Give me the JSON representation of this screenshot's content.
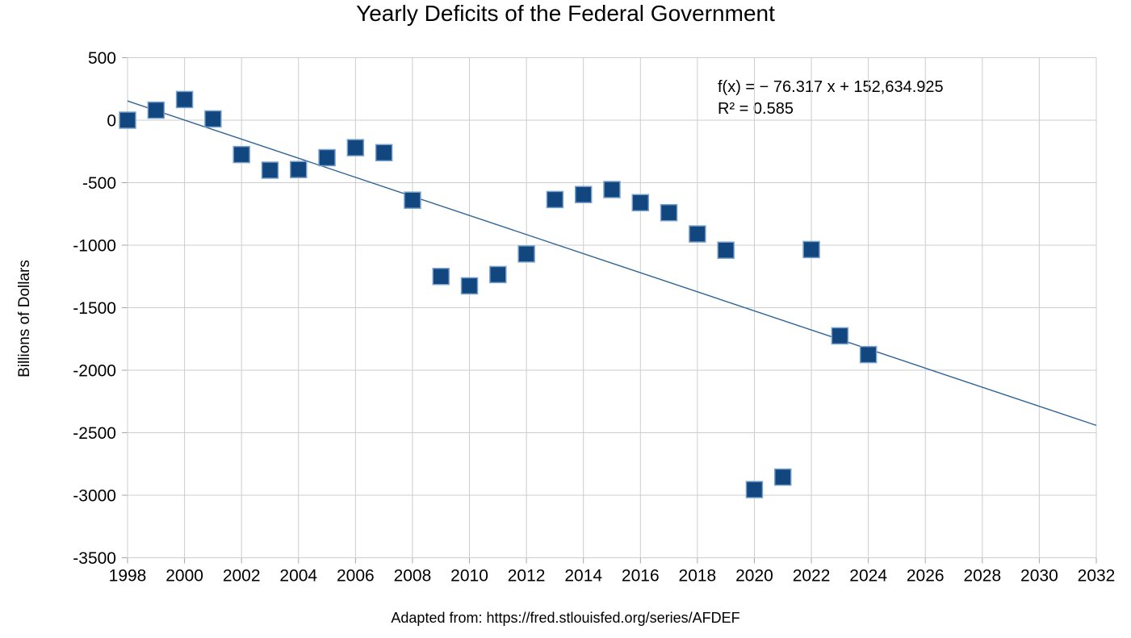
{
  "title": "Yearly Deficits of the Federal Government",
  "footer": "Adapted from: https://fred.stlouisfed.org/series/AFDEF",
  "annotation": {
    "equation": "f(x) = − 76.317 x + 152,634.925",
    "r_squared": "R² = 0.585"
  },
  "chart_data": {
    "type": "scatter",
    "title": "Yearly Deficits of the Federal Government",
    "xlabel": "",
    "ylabel": "Billions of Dollars",
    "x": [
      1998,
      1999,
      2000,
      2001,
      2002,
      2003,
      2004,
      2005,
      2006,
      2007,
      2008,
      2009,
      2010,
      2011,
      2012,
      2013,
      2014,
      2015,
      2016,
      2017,
      2018,
      2019,
      2020,
      2021,
      2022,
      2023,
      2024
    ],
    "y": [
      0,
      80,
      165,
      10,
      -275,
      -400,
      -395,
      -300,
      -220,
      -260,
      -640,
      -1250,
      -1325,
      -1235,
      -1070,
      -635,
      -595,
      -555,
      -660,
      -740,
      -910,
      -1040,
      -2955,
      -2855,
      -1035,
      -1725,
      -1875
    ],
    "xlim": [
      1998,
      2032
    ],
    "ylim": [
      -3500,
      500
    ],
    "x_tick_step": 2,
    "y_tick_step": 500,
    "grid": true,
    "legend": "none",
    "marker": "square",
    "trendline": {
      "slope": -76.317,
      "intercept": 152634.925,
      "r2": 0.585,
      "x_range": [
        1998,
        2032
      ]
    },
    "colors": {
      "marker_fill": "#11467f",
      "marker_border": "#7aa1cc",
      "trend_line": "#2f6496",
      "gridline": "#cdcdcd",
      "tick": "#a6a6a6",
      "text": "#000000"
    }
  }
}
